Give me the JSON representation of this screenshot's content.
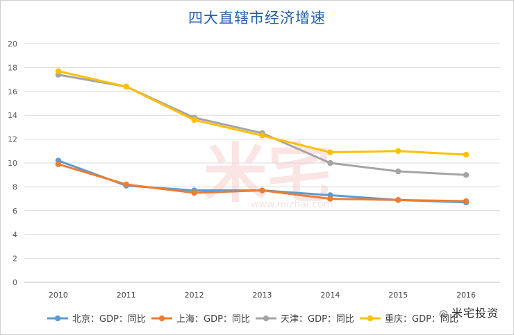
{
  "chart_data": {
    "type": "line",
    "title": "四大直辖市经济增速",
    "xlabel": "",
    "ylabel": "",
    "x": [
      "2010",
      "2011",
      "2012",
      "2013",
      "2014",
      "2015",
      "2016"
    ],
    "ylim": [
      0,
      20
    ],
    "yticks": [
      "0",
      "2",
      "4",
      "6",
      "8",
      "10",
      "12",
      "14",
      "16",
      "18",
      "20"
    ],
    "grid": true,
    "legend": "bottom",
    "series": [
      {
        "name": "北京：GDP：同比",
        "color": "#5b9bd5",
        "values": [
          10.2,
          8.1,
          7.7,
          7.7,
          7.3,
          6.9,
          6.7
        ]
      },
      {
        "name": "上海：GDP：同比",
        "color": "#ed7d31",
        "values": [
          9.9,
          8.2,
          7.5,
          7.7,
          7.0,
          6.9,
          6.8
        ]
      },
      {
        "name": "天津：GDP：同比",
        "color": "#a5a5a5",
        "values": [
          17.4,
          16.4,
          13.8,
          12.5,
          10.0,
          9.3,
          9.0
        ]
      },
      {
        "name": "重庆：GDP：同比",
        "color": "#ffc000",
        "values": [
          17.7,
          16.4,
          13.6,
          12.3,
          10.9,
          11.0,
          10.7
        ]
      }
    ]
  },
  "watermark": {
    "center": "米宅",
    "url": "www.mizhai.com",
    "brand": "米宅投资"
  }
}
